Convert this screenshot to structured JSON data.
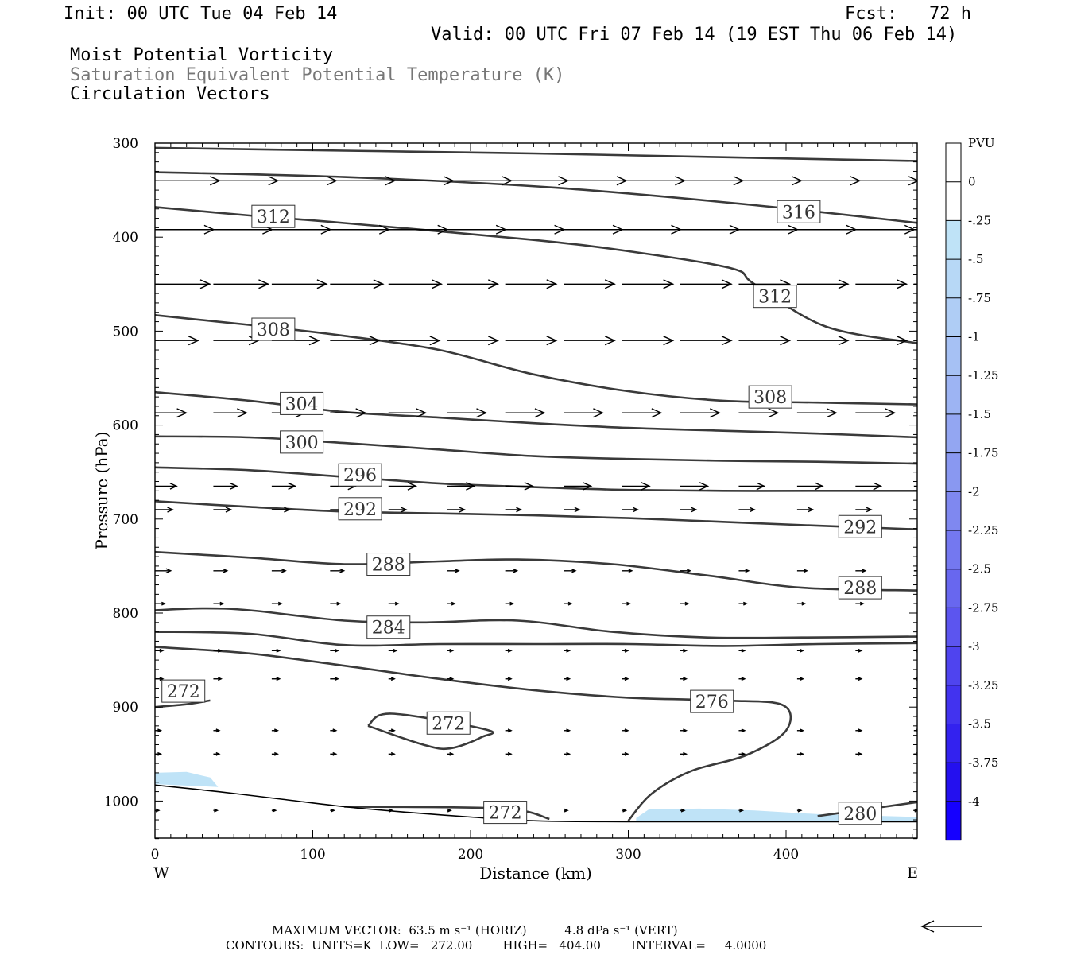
{
  "header": {
    "init": "Init: 00 UTC Tue 04 Feb 14",
    "fcst": "Fcst:   72 h",
    "valid": "Valid: 00 UTC Fri 07 Feb 14 (19 EST Thu 06 Feb 14)",
    "line1": "Moist Potential Vorticity",
    "line2": "Saturation Equivalent Potential Temperature (K)",
    "line3": "Circulation Vectors"
  },
  "footer": {
    "max_vector": "MAXIMUM VECTOR:  63.5 m s⁻¹ (HORIZ)          4.8 dPa s⁻¹ (VERT)",
    "contours": "CONTOURS:  UNITS=K  LOW=   272.00        HIGH=   404.00        INTERVAL=     4.0000"
  },
  "colors": {
    "contour": "#3a3a3a",
    "light_pv": "#bfe3f7"
  },
  "chart_data": {
    "type": "cross-section",
    "xlabel": "Distance (km)",
    "ylabel": "Pressure (hPa)",
    "xlim": [
      0,
      484
    ],
    "ylim": [
      300,
      1040
    ],
    "x_ticks": [
      0,
      100,
      200,
      300,
      400
    ],
    "y_ticks": [
      300,
      400,
      500,
      600,
      700,
      800,
      900,
      1000
    ],
    "x_end_labels": [
      "W",
      "E"
    ],
    "colorbar": {
      "title": "PVU",
      "ticks": [
        "0",
        "-.25",
        "-.5",
        "-.75",
        "-1",
        "-1.25",
        "-1.5",
        "-1.75",
        "-2",
        "-2.25",
        "-2.5",
        "-2.75",
        "-3",
        "-3.25",
        "-3.5",
        "-3.75",
        "-4"
      ],
      "colors": [
        "#ffffff",
        "#ffffff",
        "#bfe3f7",
        "#b7d8f6",
        "#afcdf5",
        "#a6c1f4",
        "#9db4f3",
        "#93a6f2",
        "#8998f1",
        "#7f88f0",
        "#7478f0",
        "#6867ef",
        "#5c55ef",
        "#4f44ef",
        "#4233ef",
        "#3322ef",
        "#2410ef",
        "#1500ff"
      ]
    },
    "theta_contours": [
      {
        "level": 316,
        "points": [
          [
            0,
            305
          ],
          [
            120,
            308
          ],
          [
            240,
            311
          ],
          [
            360,
            315
          ],
          [
            484,
            319
          ]
        ]
      },
      {
        "level": 316,
        "points": [
          [
            0,
            331
          ],
          [
            120,
            336
          ],
          [
            250,
            347
          ],
          [
            380,
            366
          ],
          [
            484,
            385
          ]
        ]
      },
      {
        "level": 312,
        "points": [
          [
            0,
            368
          ],
          [
            60,
            377
          ],
          [
            120,
            385
          ],
          [
            240,
            403
          ],
          [
            300,
            415
          ],
          [
            365,
            433
          ],
          [
            380,
            450
          ],
          [
            425,
            495
          ],
          [
            484,
            513
          ]
        ]
      },
      {
        "level": 308,
        "points": [
          [
            0,
            483
          ],
          [
            40,
            490
          ],
          [
            80,
            497
          ],
          [
            120,
            505
          ],
          [
            180,
            520
          ],
          [
            240,
            546
          ],
          [
            300,
            564
          ],
          [
            360,
            574
          ],
          [
            420,
            576
          ],
          [
            484,
            578
          ]
        ]
      },
      {
        "level": 304,
        "points": [
          [
            0,
            565
          ],
          [
            60,
            574
          ],
          [
            120,
            586
          ],
          [
            180,
            592
          ],
          [
            240,
            598
          ],
          [
            300,
            603
          ],
          [
            360,
            606
          ],
          [
            420,
            609
          ],
          [
            484,
            613
          ]
        ]
      },
      {
        "level": 300,
        "points": [
          [
            0,
            612
          ],
          [
            60,
            613
          ],
          [
            120,
            619
          ],
          [
            180,
            626
          ],
          [
            240,
            633
          ],
          [
            300,
            636
          ],
          [
            360,
            638
          ],
          [
            420,
            639
          ],
          [
            484,
            641
          ]
        ]
      },
      {
        "level": 296,
        "points": [
          [
            0,
            645
          ],
          [
            60,
            648
          ],
          [
            120,
            655
          ],
          [
            180,
            662
          ],
          [
            240,
            666
          ],
          [
            300,
            669
          ],
          [
            360,
            670
          ],
          [
            420,
            670
          ],
          [
            484,
            670
          ]
        ]
      },
      {
        "level": 292,
        "points": [
          [
            0,
            681
          ],
          [
            60,
            687
          ],
          [
            120,
            692
          ],
          [
            180,
            694
          ],
          [
            240,
            696
          ],
          [
            300,
            699
          ],
          [
            360,
            703
          ],
          [
            420,
            707
          ],
          [
            484,
            711
          ]
        ]
      },
      {
        "level": 288,
        "points": [
          [
            0,
            735
          ],
          [
            60,
            741
          ],
          [
            120,
            748
          ],
          [
            180,
            745
          ],
          [
            230,
            743
          ],
          [
            290,
            748
          ],
          [
            350,
            760
          ],
          [
            410,
            773
          ],
          [
            484,
            776
          ]
        ]
      },
      {
        "level": 284,
        "points": [
          [
            0,
            797
          ],
          [
            30,
            795
          ],
          [
            60,
            797
          ],
          [
            120,
            808
          ],
          [
            170,
            810
          ],
          [
            230,
            808
          ],
          [
            290,
            820
          ],
          [
            350,
            826
          ],
          [
            410,
            826
          ],
          [
            484,
            825
          ]
        ]
      },
      {
        "level": 280,
        "points": [
          [
            0,
            820
          ],
          [
            60,
            822
          ],
          [
            120,
            834
          ],
          [
            180,
            833
          ],
          [
            240,
            833
          ],
          [
            300,
            833
          ],
          [
            360,
            835
          ],
          [
            420,
            833
          ],
          [
            484,
            832
          ]
        ]
      },
      {
        "level": 276,
        "points": [
          [
            0,
            836
          ],
          [
            60,
            843
          ],
          [
            120,
            856
          ],
          [
            180,
            870
          ],
          [
            240,
            882
          ],
          [
            300,
            890
          ],
          [
            360,
            893
          ],
          [
            398,
            898
          ],
          [
            400,
            925
          ],
          [
            375,
            951
          ],
          [
            340,
            968
          ],
          [
            315,
            992
          ],
          [
            300,
            1021
          ]
        ]
      },
      {
        "level": 272,
        "points": [
          [
            0,
            900
          ],
          [
            20,
            897
          ],
          [
            35,
            893
          ]
        ]
      },
      {
        "level": 272,
        "points": [
          [
            135,
            920
          ],
          [
            150,
            907
          ],
          [
            210,
            924
          ],
          [
            207,
            932
          ],
          [
            187,
            944
          ],
          [
            170,
            940
          ],
          [
            135,
            920
          ]
        ]
      },
      {
        "level": 272,
        "points": [
          [
            120,
            1006
          ],
          [
            220,
            1008
          ],
          [
            250,
            1019
          ]
        ]
      },
      {
        "level": 280,
        "points": [
          [
            420,
            1016
          ],
          [
            484,
            1001
          ]
        ]
      }
    ],
    "contour_labels": [
      {
        "level": 312,
        "x": 75,
        "p": 378
      },
      {
        "level": 316,
        "x": 408,
        "p": 373
      },
      {
        "level": 312,
        "x": 393,
        "p": 463
      },
      {
        "level": 308,
        "x": 75,
        "p": 498
      },
      {
        "level": 308,
        "x": 390,
        "p": 570
      },
      {
        "level": 304,
        "x": 93,
        "p": 577
      },
      {
        "level": 300,
        "x": 93,
        "p": 618
      },
      {
        "level": 296,
        "x": 130,
        "p": 653
      },
      {
        "level": 292,
        "x": 130,
        "p": 689
      },
      {
        "level": 292,
        "x": 447,
        "p": 708
      },
      {
        "level": 288,
        "x": 148,
        "p": 748
      },
      {
        "level": 288,
        "x": 447,
        "p": 773
      },
      {
        "level": 284,
        "x": 148,
        "p": 815
      },
      {
        "level": 276,
        "x": 353,
        "p": 894
      },
      {
        "level": 272,
        "x": 18,
        "p": 883
      },
      {
        "level": 272,
        "x": 186,
        "p": 917
      },
      {
        "level": 272,
        "x": 222,
        "p": 1012
      },
      {
        "level": 280,
        "x": 447,
        "p": 1013
      }
    ],
    "pv_shading": [
      {
        "label": "-.25 to -.5",
        "points": [
          [
            0,
            970
          ],
          [
            20,
            969
          ],
          [
            35,
            975
          ],
          [
            40,
            985
          ],
          [
            0,
            982
          ]
        ]
      },
      {
        "label": "-.25 to -.5",
        "points": [
          [
            305,
            1018
          ],
          [
            313,
            1009
          ],
          [
            345,
            1008
          ],
          [
            380,
            1010
          ],
          [
            420,
            1014
          ],
          [
            484,
            1017
          ],
          [
            484,
            1022
          ],
          [
            305,
            1022
          ]
        ]
      }
    ],
    "terrain": [
      [
        0,
        983
      ],
      [
        40,
        990
      ],
      [
        80,
        998
      ],
      [
        120,
        1006
      ],
      [
        160,
        1012
      ],
      [
        200,
        1017
      ],
      [
        240,
        1021
      ],
      [
        300,
        1022
      ],
      [
        484,
        1022
      ]
    ],
    "vectors": {
      "rows": [
        {
          "p": 340,
          "u": [
            33,
            33,
            33,
            33,
            33,
            33,
            32,
            32,
            32,
            32,
            32,
            32,
            32,
            32
          ]
        },
        {
          "p": 392,
          "u": [
            30,
            30,
            30,
            30,
            30,
            30,
            30,
            30,
            30,
            30,
            30,
            30,
            30,
            30
          ]
        },
        {
          "p": 450,
          "u": [
            28,
            28,
            28,
            27,
            27,
            26,
            26,
            26,
            26,
            26,
            26,
            26,
            26,
            26
          ]
        },
        {
          "p": 510,
          "u": [
            22,
            23,
            24,
            25,
            26,
            26,
            26,
            26,
            26,
            26,
            26,
            26,
            26,
            26
          ]
        },
        {
          "p": 587,
          "u": [
            16,
            17,
            17,
            18,
            19,
            20,
            20,
            20,
            20,
            20,
            20,
            20,
            20,
            20
          ]
        },
        {
          "p": 665,
          "u": [
            11,
            12,
            12,
            13,
            14,
            14,
            14,
            14,
            14,
            14,
            13,
            13,
            13,
            13
          ]
        },
        {
          "p": 690,
          "u": [
            9,
            9,
            9,
            9,
            9,
            9,
            8,
            8,
            8,
            8,
            8,
            8,
            8,
            8
          ]
        },
        {
          "p": 755,
          "u": [
            8,
            7,
            7,
            7,
            6,
            6,
            6,
            6,
            5,
            5,
            5,
            5,
            5,
            5
          ]
        },
        {
          "p": 790,
          "u": [
            5,
            5,
            5,
            5,
            5,
            4,
            4,
            4,
            4,
            4,
            4,
            4,
            4,
            4
          ]
        },
        {
          "p": 840,
          "u": [
            4,
            4,
            4,
            4,
            4,
            3,
            3,
            3,
            3,
            3,
            3,
            3,
            3,
            3
          ]
        },
        {
          "p": 870,
          "u": [
            4,
            4,
            4,
            4,
            3,
            3,
            3,
            3,
            3,
            3,
            3,
            3,
            3,
            3
          ]
        },
        {
          "p": 925,
          "u": [
            3,
            3,
            3,
            3,
            3,
            3,
            3,
            3,
            3,
            3,
            3,
            3,
            3,
            3
          ]
        },
        {
          "p": 950,
          "u": [
            3,
            3,
            3,
            3,
            3,
            3,
            3,
            3,
            3,
            3,
            3,
            3,
            3,
            3
          ]
        },
        {
          "p": 1010,
          "u": [
            2,
            2,
            2,
            2,
            2,
            2,
            2,
            2,
            2,
            2,
            2,
            2,
            2,
            2
          ]
        }
      ],
      "x_positions": [
        0,
        37,
        74,
        111,
        148,
        185,
        222,
        259,
        296,
        333,
        370,
        407,
        444,
        481
      ],
      "reference": {
        "u": 63.5
      }
    }
  }
}
